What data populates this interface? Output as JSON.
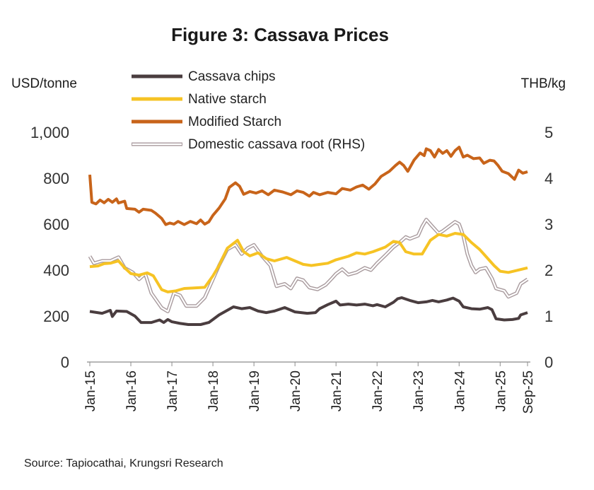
{
  "chart_data": {
    "type": "line",
    "title": "Figure 3: Cassava Prices",
    "ylabel_left": "USD/tonne",
    "ylabel_right": "THB/kg",
    "ylim_left": [
      0,
      1000
    ],
    "ylim_right": [
      0,
      5
    ],
    "yticks_left": [
      "0",
      "200",
      "400",
      "600",
      "800",
      "1,000"
    ],
    "yticks_right": [
      "0",
      "1",
      "2",
      "3",
      "4",
      "5"
    ],
    "x_range": [
      2015.0,
      2025.667
    ],
    "xticks": [
      {
        "label": "Jan-15",
        "t": 2015.0
      },
      {
        "label": "Jan-16",
        "t": 2016.0
      },
      {
        "label": "Jan-17",
        "t": 2017.0
      },
      {
        "label": "Jan-18",
        "t": 2018.0
      },
      {
        "label": "Jan-19",
        "t": 2019.0
      },
      {
        "label": "Jan-20",
        "t": 2020.0
      },
      {
        "label": "Jan-21",
        "t": 2021.0
      },
      {
        "label": "Jan-22",
        "t": 2022.0
      },
      {
        "label": "Jan-23",
        "t": 2023.0
      },
      {
        "label": "Jan-24",
        "t": 2024.0
      },
      {
        "label": "Jan-25",
        "t": 2025.0
      },
      {
        "label": "Sep-25",
        "t": 2025.667
      }
    ],
    "series": [
      {
        "name": "Cassava chips",
        "axis": "left",
        "color": "#4a3d3f",
        "style": "solid",
        "points": [
          [
            2015.0,
            220
          ],
          [
            2015.3,
            212
          ],
          [
            2015.5,
            225
          ],
          [
            2015.55,
            198
          ],
          [
            2015.65,
            222
          ],
          [
            2015.9,
            220
          ],
          [
            2016.1,
            200
          ],
          [
            2016.25,
            172
          ],
          [
            2016.5,
            172
          ],
          [
            2016.7,
            183
          ],
          [
            2016.8,
            172
          ],
          [
            2016.9,
            185
          ],
          [
            2017.0,
            175
          ],
          [
            2017.2,
            168
          ],
          [
            2017.4,
            163
          ],
          [
            2017.7,
            163
          ],
          [
            2017.9,
            172
          ],
          [
            2018.0,
            185
          ],
          [
            2018.15,
            205
          ],
          [
            2018.3,
            220
          ],
          [
            2018.5,
            240
          ],
          [
            2018.7,
            232
          ],
          [
            2018.9,
            237
          ],
          [
            2019.1,
            222
          ],
          [
            2019.3,
            215
          ],
          [
            2019.5,
            222
          ],
          [
            2019.75,
            237
          ],
          [
            2020.0,
            218
          ],
          [
            2020.3,
            212
          ],
          [
            2020.5,
            215
          ],
          [
            2020.6,
            232
          ],
          [
            2020.8,
            250
          ],
          [
            2021.0,
            265
          ],
          [
            2021.1,
            248
          ],
          [
            2021.3,
            252
          ],
          [
            2021.5,
            248
          ],
          [
            2021.7,
            252
          ],
          [
            2021.9,
            245
          ],
          [
            2022.0,
            250
          ],
          [
            2022.2,
            240
          ],
          [
            2022.4,
            260
          ],
          [
            2022.5,
            275
          ],
          [
            2022.6,
            280
          ],
          [
            2022.8,
            268
          ],
          [
            2023.0,
            258
          ],
          [
            2023.2,
            262
          ],
          [
            2023.35,
            268
          ],
          [
            2023.5,
            262
          ],
          [
            2023.7,
            270
          ],
          [
            2023.85,
            278
          ],
          [
            2024.0,
            265
          ],
          [
            2024.1,
            240
          ],
          [
            2024.3,
            232
          ],
          [
            2024.5,
            230
          ],
          [
            2024.7,
            237
          ],
          [
            2024.8,
            228
          ],
          [
            2024.9,
            188
          ],
          [
            2025.1,
            183
          ],
          [
            2025.3,
            185
          ],
          [
            2025.45,
            190
          ],
          [
            2025.5,
            205
          ],
          [
            2025.667,
            215
          ]
        ]
      },
      {
        "name": "Native starch",
        "axis": "left",
        "color": "#f6c324",
        "style": "solid",
        "points": [
          [
            2015.0,
            415
          ],
          [
            2015.2,
            418
          ],
          [
            2015.35,
            428
          ],
          [
            2015.5,
            430
          ],
          [
            2015.7,
            440
          ],
          [
            2015.85,
            410
          ],
          [
            2016.0,
            385
          ],
          [
            2016.2,
            378
          ],
          [
            2016.4,
            388
          ],
          [
            2016.55,
            375
          ],
          [
            2016.75,
            315
          ],
          [
            2016.9,
            305
          ],
          [
            2017.1,
            310
          ],
          [
            2017.3,
            320
          ],
          [
            2017.5,
            322
          ],
          [
            2017.8,
            325
          ],
          [
            2018.0,
            375
          ],
          [
            2018.15,
            420
          ],
          [
            2018.35,
            495
          ],
          [
            2018.6,
            530
          ],
          [
            2018.75,
            480
          ],
          [
            2018.9,
            462
          ],
          [
            2019.1,
            475
          ],
          [
            2019.3,
            450
          ],
          [
            2019.5,
            440
          ],
          [
            2019.8,
            455
          ],
          [
            2020.0,
            440
          ],
          [
            2020.2,
            425
          ],
          [
            2020.4,
            420
          ],
          [
            2020.6,
            425
          ],
          [
            2020.8,
            430
          ],
          [
            2021.0,
            445
          ],
          [
            2021.3,
            460
          ],
          [
            2021.5,
            475
          ],
          [
            2021.7,
            470
          ],
          [
            2021.9,
            480
          ],
          [
            2022.2,
            500
          ],
          [
            2022.4,
            525
          ],
          [
            2022.55,
            520
          ],
          [
            2022.7,
            480
          ],
          [
            2022.9,
            470
          ],
          [
            2023.1,
            470
          ],
          [
            2023.3,
            530
          ],
          [
            2023.5,
            555
          ],
          [
            2023.7,
            548
          ],
          [
            2023.9,
            560
          ],
          [
            2024.1,
            555
          ],
          [
            2024.3,
            520
          ],
          [
            2024.5,
            490
          ],
          [
            2024.65,
            460
          ],
          [
            2024.85,
            420
          ],
          [
            2025.0,
            395
          ],
          [
            2025.2,
            390
          ],
          [
            2025.4,
            398
          ],
          [
            2025.667,
            410
          ]
        ]
      },
      {
        "name": "Modified Starch",
        "axis": "left",
        "color": "#c8641a",
        "style": "solid",
        "points": [
          [
            2015.0,
            815
          ],
          [
            2015.05,
            695
          ],
          [
            2015.15,
            688
          ],
          [
            2015.25,
            705
          ],
          [
            2015.35,
            693
          ],
          [
            2015.45,
            708
          ],
          [
            2015.55,
            695
          ],
          [
            2015.65,
            710
          ],
          [
            2015.7,
            692
          ],
          [
            2015.85,
            700
          ],
          [
            2015.9,
            668
          ],
          [
            2016.1,
            665
          ],
          [
            2016.2,
            652
          ],
          [
            2016.3,
            665
          ],
          [
            2016.5,
            660
          ],
          [
            2016.6,
            648
          ],
          [
            2016.75,
            625
          ],
          [
            2016.85,
            598
          ],
          [
            2016.95,
            605
          ],
          [
            2017.05,
            600
          ],
          [
            2017.15,
            612
          ],
          [
            2017.3,
            598
          ],
          [
            2017.45,
            612
          ],
          [
            2017.6,
            602
          ],
          [
            2017.7,
            618
          ],
          [
            2017.8,
            600
          ],
          [
            2017.9,
            610
          ],
          [
            2018.0,
            638
          ],
          [
            2018.15,
            670
          ],
          [
            2018.3,
            710
          ],
          [
            2018.4,
            760
          ],
          [
            2018.55,
            780
          ],
          [
            2018.65,
            765
          ],
          [
            2018.75,
            730
          ],
          [
            2018.9,
            742
          ],
          [
            2019.05,
            735
          ],
          [
            2019.2,
            745
          ],
          [
            2019.35,
            728
          ],
          [
            2019.5,
            748
          ],
          [
            2019.7,
            740
          ],
          [
            2019.9,
            728
          ],
          [
            2020.05,
            745
          ],
          [
            2020.2,
            738
          ],
          [
            2020.35,
            722
          ],
          [
            2020.45,
            738
          ],
          [
            2020.6,
            728
          ],
          [
            2020.8,
            738
          ],
          [
            2021.0,
            732
          ],
          [
            2021.15,
            755
          ],
          [
            2021.35,
            748
          ],
          [
            2021.5,
            762
          ],
          [
            2021.65,
            770
          ],
          [
            2021.8,
            752
          ],
          [
            2021.95,
            775
          ],
          [
            2022.1,
            808
          ],
          [
            2022.3,
            830
          ],
          [
            2022.45,
            855
          ],
          [
            2022.55,
            870
          ],
          [
            2022.65,
            855
          ],
          [
            2022.75,
            830
          ],
          [
            2022.9,
            878
          ],
          [
            2023.05,
            910
          ],
          [
            2023.15,
            898
          ],
          [
            2023.2,
            928
          ],
          [
            2023.3,
            920
          ],
          [
            2023.4,
            892
          ],
          [
            2023.5,
            925
          ],
          [
            2023.6,
            908
          ],
          [
            2023.7,
            920
          ],
          [
            2023.8,
            895
          ],
          [
            2023.9,
            920
          ],
          [
            2024.0,
            935
          ],
          [
            2024.1,
            892
          ],
          [
            2024.2,
            900
          ],
          [
            2024.35,
            885
          ],
          [
            2024.5,
            888
          ],
          [
            2024.6,
            865
          ],
          [
            2024.75,
            878
          ],
          [
            2024.85,
            875
          ],
          [
            2024.95,
            855
          ],
          [
            2025.05,
            830
          ],
          [
            2025.2,
            820
          ],
          [
            2025.35,
            795
          ],
          [
            2025.45,
            835
          ],
          [
            2025.55,
            822
          ],
          [
            2025.667,
            828
          ]
        ]
      },
      {
        "name": "Domestic cassava root (RHS)",
        "axis": "right",
        "color": "#a89a9d",
        "style": "double",
        "points": [
          [
            2015.0,
            2.3
          ],
          [
            2015.1,
            2.15
          ],
          [
            2015.3,
            2.2
          ],
          [
            2015.5,
            2.2
          ],
          [
            2015.7,
            2.28
          ],
          [
            2015.85,
            2.05
          ],
          [
            2016.05,
            1.95
          ],
          [
            2016.2,
            1.8
          ],
          [
            2016.35,
            1.92
          ],
          [
            2016.5,
            1.5
          ],
          [
            2016.75,
            1.18
          ],
          [
            2016.9,
            1.1
          ],
          [
            2017.05,
            1.5
          ],
          [
            2017.2,
            1.45
          ],
          [
            2017.35,
            1.22
          ],
          [
            2017.6,
            1.22
          ],
          [
            2017.8,
            1.4
          ],
          [
            2018.0,
            1.8
          ],
          [
            2018.15,
            2.1
          ],
          [
            2018.35,
            2.45
          ],
          [
            2018.55,
            2.55
          ],
          [
            2018.7,
            2.35
          ],
          [
            2018.85,
            2.48
          ],
          [
            2019.0,
            2.55
          ],
          [
            2019.2,
            2.3
          ],
          [
            2019.4,
            2.1
          ],
          [
            2019.55,
            1.65
          ],
          [
            2019.75,
            1.7
          ],
          [
            2019.9,
            1.6
          ],
          [
            2020.05,
            1.82
          ],
          [
            2020.2,
            1.78
          ],
          [
            2020.35,
            1.62
          ],
          [
            2020.55,
            1.58
          ],
          [
            2020.75,
            1.68
          ],
          [
            2020.9,
            1.82
          ],
          [
            2021.0,
            1.92
          ],
          [
            2021.15,
            2.02
          ],
          [
            2021.3,
            1.9
          ],
          [
            2021.5,
            1.95
          ],
          [
            2021.7,
            2.05
          ],
          [
            2021.85,
            2.0
          ],
          [
            2022.0,
            2.15
          ],
          [
            2022.2,
            2.32
          ],
          [
            2022.4,
            2.5
          ],
          [
            2022.55,
            2.6
          ],
          [
            2022.7,
            2.72
          ],
          [
            2022.8,
            2.68
          ],
          [
            2023.0,
            2.75
          ],
          [
            2023.1,
            2.95
          ],
          [
            2023.2,
            3.1
          ],
          [
            2023.35,
            2.95
          ],
          [
            2023.5,
            2.8
          ],
          [
            2023.6,
            2.85
          ],
          [
            2023.75,
            2.95
          ],
          [
            2023.9,
            3.05
          ],
          [
            2024.0,
            3.0
          ],
          [
            2024.1,
            2.75
          ],
          [
            2024.2,
            2.35
          ],
          [
            2024.3,
            2.1
          ],
          [
            2024.4,
            1.95
          ],
          [
            2024.5,
            2.02
          ],
          [
            2024.65,
            2.05
          ],
          [
            2024.8,
            1.82
          ],
          [
            2024.9,
            1.6
          ],
          [
            2025.1,
            1.55
          ],
          [
            2025.2,
            1.42
          ],
          [
            2025.4,
            1.5
          ],
          [
            2025.5,
            1.7
          ],
          [
            2025.667,
            1.8
          ]
        ]
      }
    ]
  },
  "source": "Source: Tapiocathai, Krungsri Research"
}
